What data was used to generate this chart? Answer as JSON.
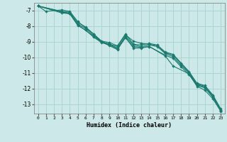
{
  "xlabel": "Humidex (Indice chaleur)",
  "xlim": [
    -0.5,
    23.5
  ],
  "ylim": [
    -13.6,
    -6.5
  ],
  "yticks": [
    -13,
    -12,
    -11,
    -10,
    -9,
    -8,
    -7
  ],
  "xticks": [
    0,
    1,
    2,
    3,
    4,
    5,
    6,
    7,
    8,
    9,
    10,
    11,
    12,
    13,
    14,
    15,
    16,
    17,
    18,
    19,
    20,
    21,
    22,
    23
  ],
  "background_color": "#cce8e8",
  "grid_color": "#aad4d4",
  "line_color": "#1a7a6e",
  "lines": [
    {
      "x": [
        0,
        1,
        3,
        4,
        5,
        6,
        7,
        8,
        9,
        10,
        11,
        12,
        13,
        14,
        15,
        16,
        17,
        18,
        19,
        20,
        21,
        22,
        23
      ],
      "y": [
        -6.7,
        -7.05,
        -6.95,
        -7.05,
        -7.7,
        -8.1,
        -8.5,
        -9.0,
        -9.15,
        -9.3,
        -8.55,
        -8.95,
        -9.1,
        -9.15,
        -9.25,
        -9.7,
        -9.85,
        -10.4,
        -10.95,
        -11.7,
        -11.85,
        -12.45,
        -13.35
      ]
    },
    {
      "x": [
        0,
        3,
        4,
        5,
        6,
        7,
        8,
        9,
        10,
        11,
        12,
        13,
        14,
        15,
        16,
        17,
        18,
        19,
        20,
        21,
        22,
        23
      ],
      "y": [
        -6.7,
        -7.05,
        -7.1,
        -7.75,
        -8.05,
        -8.5,
        -8.95,
        -9.05,
        -9.25,
        -8.5,
        -9.15,
        -9.2,
        -9.1,
        -9.2,
        -9.65,
        -9.8,
        -10.35,
        -10.9,
        -11.65,
        -11.8,
        -12.4,
        -13.3
      ]
    },
    {
      "x": [
        0,
        3,
        4,
        5,
        6,
        7,
        8,
        9,
        10,
        11,
        12,
        13,
        14,
        15,
        16,
        17,
        18,
        19,
        20,
        21,
        22,
        23
      ],
      "y": [
        -6.7,
        -7.1,
        -7.15,
        -7.85,
        -8.15,
        -8.6,
        -9.0,
        -9.15,
        -9.4,
        -8.65,
        -9.2,
        -9.3,
        -9.2,
        -9.3,
        -9.75,
        -9.95,
        -10.5,
        -11.0,
        -11.75,
        -11.9,
        -12.5,
        -13.4
      ]
    },
    {
      "x": [
        0,
        4,
        5,
        7,
        8,
        9,
        10,
        11,
        12,
        13,
        14,
        16,
        17,
        19,
        20,
        21,
        22,
        23
      ],
      "y": [
        -6.7,
        -7.2,
        -7.9,
        -8.65,
        -9.0,
        -9.25,
        -9.5,
        -8.7,
        -9.4,
        -9.4,
        -9.3,
        -9.9,
        -10.55,
        -11.05,
        -11.85,
        -12.1,
        -12.65,
        -13.45
      ]
    },
    {
      "x": [
        0,
        3,
        4,
        5,
        6,
        7,
        8,
        9,
        10,
        11,
        12,
        13,
        14,
        16,
        17,
        18,
        19,
        20,
        21,
        22,
        23
      ],
      "y": [
        -6.7,
        -7.15,
        -7.2,
        -7.95,
        -8.25,
        -8.7,
        -9.05,
        -9.2,
        -9.45,
        -8.75,
        -9.3,
        -9.35,
        -9.3,
        -9.85,
        -10.05,
        -10.6,
        -11.1,
        -11.8,
        -11.95,
        -12.55,
        -13.4
      ]
    }
  ]
}
